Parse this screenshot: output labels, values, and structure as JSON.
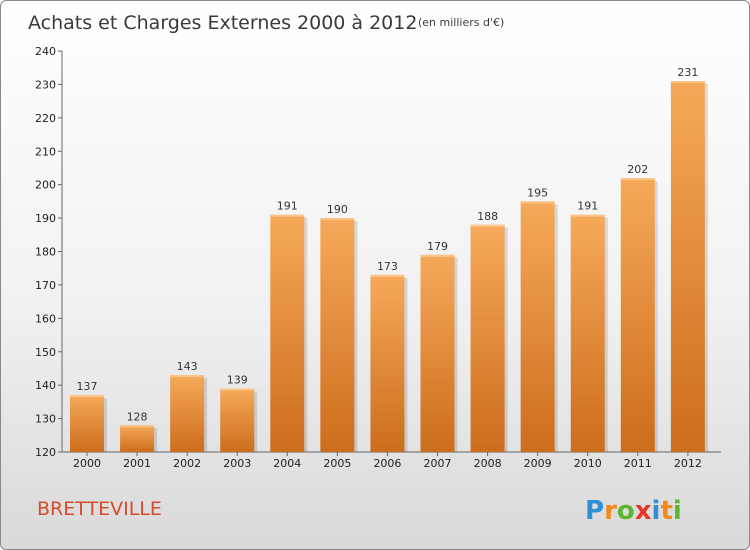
{
  "chart_data": {
    "type": "bar",
    "title": "Achats et Charges Externes 2000 à 2012",
    "subtitle": "(en milliers d'€)",
    "categories": [
      "2000",
      "2001",
      "2002",
      "2003",
      "2004",
      "2005",
      "2006",
      "2007",
      "2008",
      "2009",
      "2010",
      "2011",
      "2012"
    ],
    "values": [
      137,
      128,
      143,
      139,
      191,
      190,
      173,
      179,
      188,
      195,
      191,
      202,
      231
    ],
    "ylim": [
      120,
      240
    ],
    "yticks": [
      120,
      130,
      140,
      150,
      160,
      170,
      180,
      190,
      200,
      210,
      220,
      230,
      240
    ],
    "grid": false,
    "bar_color_light": "#f6a95a",
    "bar_color_dark": "#cc6d1c"
  },
  "commune": "BRETTEVILLE",
  "logo": {
    "letters": [
      "P",
      "r",
      "o",
      "x",
      "i",
      "t",
      "i"
    ],
    "colors": [
      "#2d8fd6",
      "#f08a1e",
      "#5db532",
      "#e23a2a",
      "#2d8fd6",
      "#f08a1e",
      "#5db532"
    ]
  }
}
